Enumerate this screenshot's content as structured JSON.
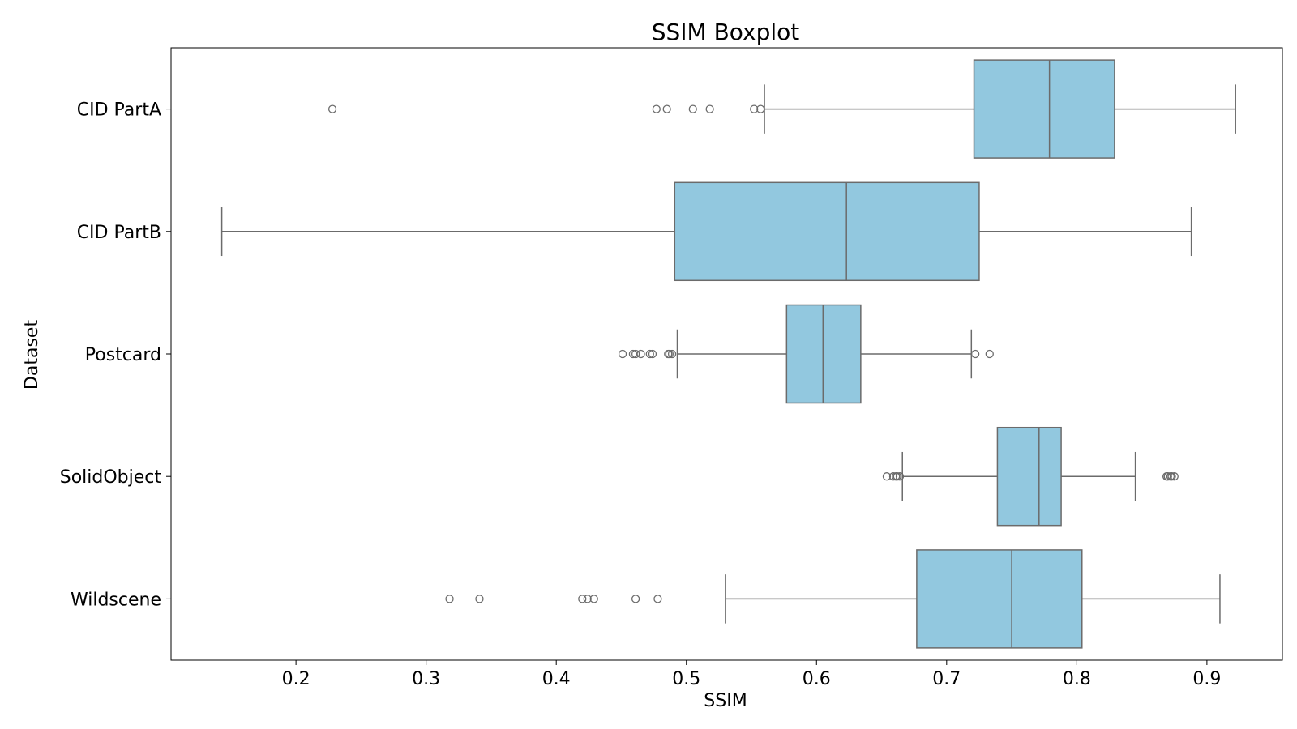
{
  "chart_data": {
    "type": "boxplot",
    "orientation": "horizontal",
    "title": "SSIM Boxplot",
    "xlabel": "SSIM",
    "ylabel": "Dataset",
    "xlim": [
      0.104,
      0.958
    ],
    "xticks": [
      0.2,
      0.3,
      0.4,
      0.5,
      0.6,
      0.7,
      0.8,
      0.9
    ],
    "xtick_labels": [
      "0.2",
      "0.3",
      "0.4",
      "0.5",
      "0.6",
      "0.7",
      "0.8",
      "0.9"
    ],
    "grid": false,
    "colors": {
      "box_fill": "#92c8df",
      "line": "#6b6b6b",
      "frame": "#000000"
    },
    "categories": [
      "CID PartA",
      "CID PartB",
      "Postcard",
      "SolidObject",
      "Wildscene"
    ],
    "boxes": [
      {
        "category": "CID PartA",
        "whisker_low": 0.56,
        "q1": 0.721,
        "median": 0.779,
        "q3": 0.829,
        "whisker_high": 0.922,
        "outliers": [
          0.228,
          0.477,
          0.485,
          0.505,
          0.518,
          0.552,
          0.557
        ]
      },
      {
        "category": "CID PartB",
        "whisker_low": 0.143,
        "q1": 0.491,
        "median": 0.623,
        "q3": 0.725,
        "whisker_high": 0.888,
        "outliers": []
      },
      {
        "category": "Postcard",
        "whisker_low": 0.493,
        "q1": 0.577,
        "median": 0.605,
        "q3": 0.634,
        "whisker_high": 0.719,
        "outliers": [
          0.451,
          0.459,
          0.461,
          0.465,
          0.472,
          0.474,
          0.486,
          0.487,
          0.489,
          0.722,
          0.733
        ]
      },
      {
        "category": "SolidObject",
        "whisker_low": 0.666,
        "q1": 0.739,
        "median": 0.771,
        "q3": 0.788,
        "whisker_high": 0.845,
        "outliers": [
          0.654,
          0.659,
          0.661,
          0.662,
          0.664,
          0.869,
          0.87,
          0.872,
          0.873,
          0.875
        ]
      },
      {
        "category": "Wildscene",
        "whisker_low": 0.53,
        "q1": 0.677,
        "median": 0.75,
        "q3": 0.804,
        "whisker_high": 0.91,
        "outliers": [
          0.318,
          0.341,
          0.42,
          0.424,
          0.429,
          0.461,
          0.478
        ]
      }
    ]
  }
}
